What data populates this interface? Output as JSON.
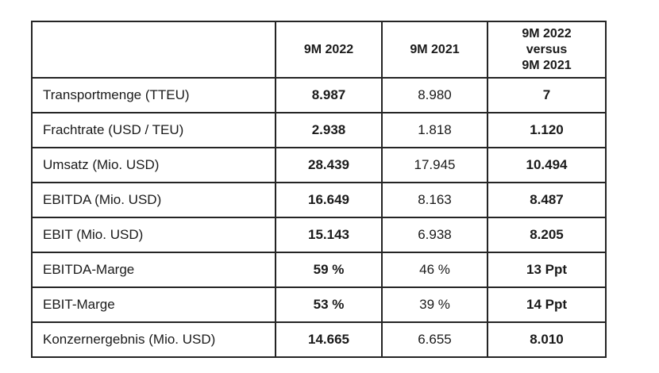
{
  "page": {
    "background_color": "#ffffff",
    "border_color": "#242424",
    "text_color": "#1a1a1a"
  },
  "table": {
    "columns": {
      "metric": "",
      "current": "9M 2022",
      "prior": "9M 2021",
      "delta": "9M 2022\nversus\n9M 2021"
    },
    "rows": [
      {
        "label": "Transportmenge (TTEU)",
        "current": "8.987",
        "prior": "8.980",
        "delta": "7"
      },
      {
        "label": "Frachtrate (USD / TEU)",
        "current": "2.938",
        "prior": "1.818",
        "delta": "1.120"
      },
      {
        "label": "Umsatz (Mio. USD)",
        "current": "28.439",
        "prior": "17.945",
        "delta": "10.494"
      },
      {
        "label": "EBITDA (Mio. USD)",
        "current": "16.649",
        "prior": "8.163",
        "delta": "8.487"
      },
      {
        "label": "EBIT (Mio. USD)",
        "current": "15.143",
        "prior": "6.938",
        "delta": "8.205"
      },
      {
        "label": "EBITDA-Marge",
        "current": "59 %",
        "prior": "46 %",
        "delta": "13 Ppt"
      },
      {
        "label": "EBIT-Marge",
        "current": "53 %",
        "prior": "39 %",
        "delta": "14 Ppt"
      },
      {
        "label": "Konzernergebnis (Mio. USD)",
        "current": "14.665",
        "prior": "6.655",
        "delta": "8.010"
      }
    ]
  }
}
